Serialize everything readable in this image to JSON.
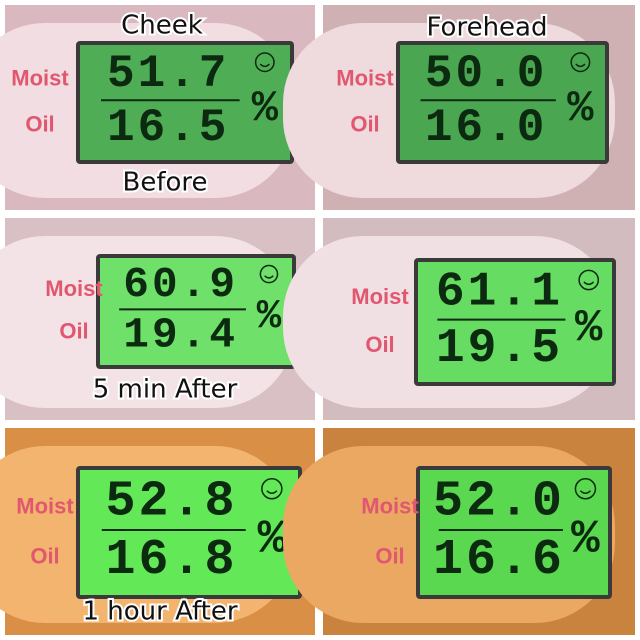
{
  "labels": {
    "columns": [
      "Cheek",
      "Forehead"
    ],
    "rows": [
      "Before",
      "5 min After",
      "1 hour After"
    ]
  },
  "panels": [
    {
      "moist_label": "Moist",
      "oil_label": "Oil",
      "moist": "51.7",
      "oil": "16.5",
      "unit": "%"
    },
    {
      "moist_label": "Moist",
      "oil_label": "Oil",
      "moist": "50.0",
      "oil": "16.0",
      "unit": "%"
    },
    {
      "moist_label": "Moist",
      "oil_label": "Oil",
      "moist": "60.9",
      "oil": "19.4",
      "unit": "%"
    },
    {
      "moist_label": "Moist",
      "oil_label": "Oil",
      "moist": "61.1",
      "oil": "19.5",
      "unit": "%"
    },
    {
      "moist_label": "Moist",
      "oil_label": "Oil",
      "moist": "52.8",
      "oil": "16.8",
      "unit": "%"
    },
    {
      "moist_label": "Moist",
      "oil_label": "Oil",
      "moist": "52.0",
      "oil": "16.6",
      "unit": "%"
    }
  ]
}
